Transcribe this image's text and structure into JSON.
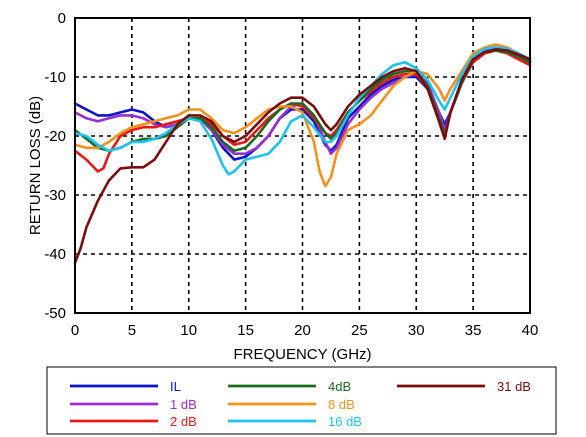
{
  "chart_data": {
    "type": "line",
    "xlabel": "FREQUENCY (GHz)",
    "ylabel": "RETURN LOSS (dB)",
    "xlim": [
      0,
      40
    ],
    "ylim": [
      -50,
      0
    ],
    "xticks": [
      "0",
      "5",
      "10",
      "15",
      "20",
      "25",
      "30",
      "35",
      "40"
    ],
    "yticks": [
      "0",
      "-10",
      "-20",
      "-30",
      "-40",
      "-50"
    ],
    "grid": true,
    "legend_position": "below plot",
    "series": [
      {
        "name": "IL",
        "color": "#0a14c8",
        "points": [
          [
            0,
            -14.5
          ],
          [
            1,
            -15.5
          ],
          [
            2,
            -16.5
          ],
          [
            3,
            -16.5
          ],
          [
            4,
            -16
          ],
          [
            5,
            -15.5
          ],
          [
            6,
            -16
          ],
          [
            7,
            -17.5
          ],
          [
            8,
            -18.5
          ],
          [
            9,
            -18
          ],
          [
            10,
            -17
          ],
          [
            11,
            -17
          ],
          [
            12,
            -19
          ],
          [
            13,
            -22
          ],
          [
            14,
            -24
          ],
          [
            15,
            -23.5
          ],
          [
            16,
            -22
          ],
          [
            17,
            -20
          ],
          [
            18,
            -17
          ],
          [
            19,
            -15.5
          ],
          [
            20,
            -15.5
          ],
          [
            21,
            -17.5
          ],
          [
            22,
            -21.5
          ],
          [
            22.5,
            -22.5
          ],
          [
            23,
            -21.5
          ],
          [
            24,
            -17
          ],
          [
            25,
            -15
          ],
          [
            26,
            -13
          ],
          [
            27,
            -11.5
          ],
          [
            28,
            -10.5
          ],
          [
            29,
            -10
          ],
          [
            30,
            -10
          ],
          [
            31,
            -12
          ],
          [
            32,
            -16
          ],
          [
            32.5,
            -18
          ],
          [
            33,
            -16
          ],
          [
            34,
            -11
          ],
          [
            35,
            -7
          ],
          [
            36,
            -5.5
          ],
          [
            37,
            -5.2
          ],
          [
            38,
            -5.5
          ],
          [
            39,
            -6.5
          ],
          [
            40,
            -7.5
          ]
        ]
      },
      {
        "name": "1 dB",
        "color": "#9a2fd0",
        "points": [
          [
            0,
            -16
          ],
          [
            1,
            -17
          ],
          [
            2,
            -17.5
          ],
          [
            3,
            -17
          ],
          [
            4,
            -16.5
          ],
          [
            5,
            -16.5
          ],
          [
            6,
            -17
          ],
          [
            7,
            -18
          ],
          [
            8,
            -18.5
          ],
          [
            9,
            -18
          ],
          [
            10,
            -17
          ],
          [
            11,
            -17
          ],
          [
            12,
            -19
          ],
          [
            13,
            -21.5
          ],
          [
            14,
            -23
          ],
          [
            15,
            -23
          ],
          [
            16,
            -22
          ],
          [
            17,
            -20
          ],
          [
            18,
            -17
          ],
          [
            19,
            -15
          ],
          [
            20,
            -14.5
          ],
          [
            21,
            -16.5
          ],
          [
            22,
            -21
          ],
          [
            22.5,
            -23
          ],
          [
            23,
            -22
          ],
          [
            24,
            -18
          ],
          [
            25,
            -15.5
          ],
          [
            26,
            -13.5
          ],
          [
            27,
            -12
          ],
          [
            28,
            -11
          ],
          [
            29,
            -10
          ],
          [
            30,
            -9.5
          ],
          [
            31,
            -11
          ],
          [
            32,
            -16
          ],
          [
            32.5,
            -19
          ],
          [
            33,
            -16
          ],
          [
            34,
            -11
          ],
          [
            35,
            -7
          ],
          [
            36,
            -5.5
          ],
          [
            37,
            -5
          ],
          [
            38,
            -5.5
          ],
          [
            39,
            -6.5
          ],
          [
            40,
            -7.5
          ]
        ]
      },
      {
        "name": "2 dB",
        "color": "#e81818",
        "points": [
          [
            0,
            -22.5
          ],
          [
            1,
            -24
          ],
          [
            2,
            -26
          ],
          [
            2.5,
            -25.5
          ],
          [
            3,
            -23
          ],
          [
            4,
            -20
          ],
          [
            5,
            -19
          ],
          [
            6,
            -18.5
          ],
          [
            7,
            -18.5
          ],
          [
            8,
            -18
          ],
          [
            9,
            -17.5
          ],
          [
            10,
            -17
          ],
          [
            11,
            -17
          ],
          [
            12,
            -18
          ],
          [
            13,
            -20
          ],
          [
            14,
            -21.5
          ],
          [
            15,
            -21
          ],
          [
            16,
            -19
          ],
          [
            17,
            -17
          ],
          [
            18,
            -15.5
          ],
          [
            19,
            -14.5
          ],
          [
            20,
            -15
          ],
          [
            21,
            -17
          ],
          [
            22,
            -19.5
          ],
          [
            22.5,
            -20
          ],
          [
            23,
            -19
          ],
          [
            24,
            -16
          ],
          [
            25,
            -14
          ],
          [
            26,
            -12.5
          ],
          [
            27,
            -11
          ],
          [
            28,
            -10
          ],
          [
            29,
            -9.5
          ],
          [
            30,
            -9.5
          ],
          [
            31,
            -12
          ],
          [
            32,
            -17
          ],
          [
            32.5,
            -20
          ],
          [
            33,
            -16
          ],
          [
            34,
            -11
          ],
          [
            35,
            -7.5
          ],
          [
            36,
            -6
          ],
          [
            37,
            -5.5
          ],
          [
            38,
            -6
          ],
          [
            39,
            -7
          ],
          [
            40,
            -8
          ]
        ]
      },
      {
        "name": "4dB",
        "color": "#1a6b22",
        "points": [
          [
            0,
            -19
          ],
          [
            1,
            -20.5
          ],
          [
            2,
            -22
          ],
          [
            3,
            -22.5
          ],
          [
            4,
            -22
          ],
          [
            5,
            -21
          ],
          [
            6,
            -20.5
          ],
          [
            7,
            -20.5
          ],
          [
            8,
            -20
          ],
          [
            9,
            -18.5
          ],
          [
            10,
            -17
          ],
          [
            11,
            -17
          ],
          [
            12,
            -18.5
          ],
          [
            13,
            -21
          ],
          [
            14,
            -22.5
          ],
          [
            15,
            -22
          ],
          [
            16,
            -20
          ],
          [
            17,
            -17.5
          ],
          [
            18,
            -15.5
          ],
          [
            19,
            -14.5
          ],
          [
            20,
            -14.5
          ],
          [
            21,
            -16.5
          ],
          [
            22,
            -19.5
          ],
          [
            22.5,
            -20.5
          ],
          [
            23,
            -19.5
          ],
          [
            24,
            -16
          ],
          [
            25,
            -14
          ],
          [
            26,
            -12
          ],
          [
            27,
            -10.5
          ],
          [
            28,
            -9.5
          ],
          [
            29,
            -9
          ],
          [
            30,
            -9
          ],
          [
            31,
            -11.5
          ],
          [
            32,
            -17
          ],
          [
            32.5,
            -20
          ],
          [
            33,
            -16
          ],
          [
            34,
            -11
          ],
          [
            35,
            -7
          ],
          [
            36,
            -5.8
          ],
          [
            37,
            -5.5
          ],
          [
            38,
            -5.8
          ],
          [
            39,
            -6.5
          ],
          [
            40,
            -7.5
          ]
        ]
      },
      {
        "name": "8 dB",
        "color": "#f5901c",
        "points": [
          [
            0,
            -21.5
          ],
          [
            1,
            -22
          ],
          [
            2,
            -22
          ],
          [
            3,
            -21
          ],
          [
            4,
            -19.5
          ],
          [
            5,
            -18.5
          ],
          [
            6,
            -18
          ],
          [
            7,
            -17.5
          ],
          [
            8,
            -17
          ],
          [
            9,
            -16.5
          ],
          [
            10,
            -15.5
          ],
          [
            11,
            -15.5
          ],
          [
            12,
            -17
          ],
          [
            13,
            -19
          ],
          [
            14,
            -19.5
          ],
          [
            15,
            -18.5
          ],
          [
            16,
            -17
          ],
          [
            17,
            -15.5
          ],
          [
            18,
            -15
          ],
          [
            19,
            -15
          ],
          [
            20,
            -16
          ],
          [
            21,
            -21
          ],
          [
            21.5,
            -26
          ],
          [
            22,
            -28.5
          ],
          [
            22.5,
            -27
          ],
          [
            23,
            -23
          ],
          [
            24,
            -19
          ],
          [
            25,
            -18
          ],
          [
            26,
            -16.5
          ],
          [
            27,
            -14
          ],
          [
            28,
            -11.5
          ],
          [
            29,
            -10
          ],
          [
            30,
            -9
          ],
          [
            31,
            -9.5
          ],
          [
            32,
            -12
          ],
          [
            32.5,
            -14
          ],
          [
            33,
            -12
          ],
          [
            34,
            -9
          ],
          [
            35,
            -6
          ],
          [
            36,
            -5
          ],
          [
            37,
            -4.5
          ],
          [
            38,
            -5
          ],
          [
            39,
            -6
          ],
          [
            40,
            -7
          ]
        ]
      },
      {
        "name": "16 dB",
        "color": "#1cc3f0",
        "points": [
          [
            0,
            -19.5
          ],
          [
            1,
            -20
          ],
          [
            2,
            -21.5
          ],
          [
            3,
            -22.5
          ],
          [
            4,
            -22
          ],
          [
            5,
            -21
          ],
          [
            6,
            -21
          ],
          [
            7,
            -20.5
          ],
          [
            8,
            -19.5
          ],
          [
            9,
            -18
          ],
          [
            10,
            -17
          ],
          [
            11,
            -17.5
          ],
          [
            12,
            -20.5
          ],
          [
            13,
            -25
          ],
          [
            13.5,
            -26.5
          ],
          [
            14,
            -26
          ],
          [
            15,
            -24
          ],
          [
            16,
            -23.5
          ],
          [
            17,
            -23
          ],
          [
            18,
            -21
          ],
          [
            19,
            -17.5
          ],
          [
            20,
            -16.5
          ],
          [
            21,
            -18.5
          ],
          [
            22,
            -21
          ],
          [
            22.5,
            -21
          ],
          [
            23,
            -20
          ],
          [
            24,
            -16.5
          ],
          [
            25,
            -13.5
          ],
          [
            26,
            -11.5
          ],
          [
            27,
            -9.5
          ],
          [
            28,
            -8
          ],
          [
            29,
            -7.5
          ],
          [
            30,
            -8.5
          ],
          [
            31,
            -10.5
          ],
          [
            32,
            -14
          ],
          [
            32.5,
            -15.5
          ],
          [
            33,
            -13.5
          ],
          [
            34,
            -9.5
          ],
          [
            35,
            -6.5
          ],
          [
            36,
            -5.2
          ],
          [
            37,
            -5
          ],
          [
            38,
            -5.2
          ],
          [
            39,
            -6
          ],
          [
            40,
            -7
          ]
        ]
      },
      {
        "name": "31 dB",
        "color": "#7a0e0e",
        "points": [
          [
            0,
            -41.5
          ],
          [
            0.5,
            -39
          ],
          [
            1,
            -35.5
          ],
          [
            2,
            -31
          ],
          [
            3,
            -27.5
          ],
          [
            4,
            -25.5
          ],
          [
            5,
            -25.3
          ],
          [
            6,
            -25.3
          ],
          [
            7,
            -24
          ],
          [
            8,
            -21
          ],
          [
            9,
            -18
          ],
          [
            10,
            -16.5
          ],
          [
            11,
            -16.5
          ],
          [
            12,
            -17.5
          ],
          [
            13,
            -20
          ],
          [
            14,
            -21
          ],
          [
            15,
            -20
          ],
          [
            16,
            -18
          ],
          [
            17,
            -16
          ],
          [
            18,
            -14.5
          ],
          [
            19,
            -13.5
          ],
          [
            20,
            -13.5
          ],
          [
            21,
            -15
          ],
          [
            22,
            -18
          ],
          [
            22.5,
            -19
          ],
          [
            23,
            -18
          ],
          [
            24,
            -15
          ],
          [
            25,
            -13
          ],
          [
            26,
            -11.5
          ],
          [
            27,
            -10
          ],
          [
            28,
            -9
          ],
          [
            29,
            -8.5
          ],
          [
            30,
            -9
          ],
          [
            31,
            -12
          ],
          [
            32,
            -17.5
          ],
          [
            32.5,
            -20.5
          ],
          [
            33,
            -16
          ],
          [
            34,
            -10.5
          ],
          [
            35,
            -7
          ],
          [
            36,
            -5.8
          ],
          [
            37,
            -5.3
          ],
          [
            38,
            -5.5
          ],
          [
            39,
            -6.2
          ],
          [
            40,
            -7
          ]
        ]
      }
    ]
  }
}
